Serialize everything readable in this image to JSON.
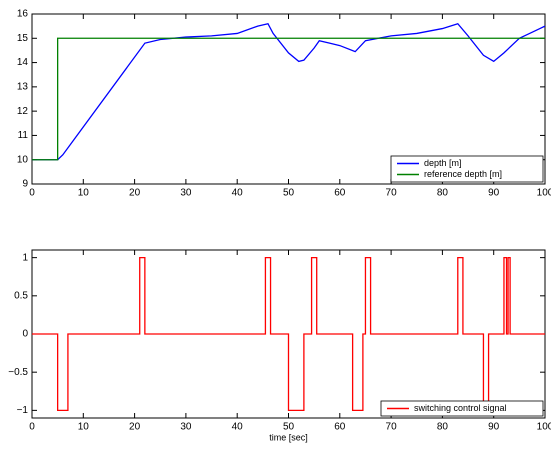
{
  "chart_data": [
    {
      "type": "line",
      "legend": "lower right",
      "xlim": [
        0,
        100
      ],
      "xticks": [
        0,
        10,
        20,
        30,
        40,
        50,
        60,
        70,
        80,
        90,
        100
      ],
      "ylim": [
        9,
        16
      ],
      "yticks": [
        9,
        10,
        11,
        12,
        13,
        14,
        15,
        16
      ],
      "series": [
        {
          "name": "depth [m]",
          "color": "#0000ff",
          "x": [
            0,
            5,
            6,
            22,
            25,
            30,
            35,
            40,
            44,
            46,
            47,
            50,
            52,
            53,
            55,
            56,
            58,
            60,
            63,
            65,
            70,
            75,
            80,
            83,
            85,
            88,
            90,
            92,
            95,
            97,
            99,
            100
          ],
          "values": [
            10,
            10,
            10.2,
            14.8,
            14.95,
            15.05,
            15.1,
            15.2,
            15.5,
            15.6,
            15.2,
            14.4,
            14.05,
            14.1,
            14.6,
            14.9,
            14.8,
            14.7,
            14.45,
            14.9,
            15.1,
            15.2,
            15.4,
            15.6,
            15.1,
            14.3,
            14.05,
            14.4,
            15.0,
            15.2,
            15.4,
            15.5
          ]
        },
        {
          "name": "reference depth [m]",
          "color": "#008000",
          "x": [
            0,
            5,
            5,
            100
          ],
          "values": [
            10,
            10,
            15,
            15
          ]
        }
      ]
    },
    {
      "type": "line",
      "legend": "lower right",
      "xlabel": "time [sec]",
      "xlim": [
        0,
        100
      ],
      "xticks": [
        0,
        10,
        20,
        30,
        40,
        50,
        60,
        70,
        80,
        90,
        100
      ],
      "ylim": [
        -1.1,
        1.1
      ],
      "yticks": [
        {
          "value": -1,
          "label": "−1"
        },
        {
          "value": -0.5,
          "label": "−0.5"
        },
        0,
        0.5,
        1
      ],
      "series": [
        {
          "name": "switching control signal",
          "color": "#ff0000",
          "x": [
            0,
            5,
            5,
            7,
            7,
            21,
            21,
            22,
            22,
            45.5,
            45.5,
            46.5,
            46.5,
            50,
            50,
            53,
            53,
            54.5,
            54.5,
            55.5,
            55.5,
            62.5,
            62.5,
            64.5,
            64.5,
            65,
            65,
            66,
            66,
            83,
            83,
            84,
            84,
            88,
            88,
            89,
            89,
            92,
            92,
            92.5,
            92.5,
            92.8,
            92.8,
            93.2,
            93.2,
            100
          ],
          "values": [
            0,
            0,
            -1,
            -1,
            0,
            0,
            1,
            1,
            0,
            0,
            1,
            1,
            0,
            0,
            -1,
            -1,
            0,
            0,
            1,
            1,
            0,
            0,
            -1,
            -1,
            0,
            0,
            1,
            1,
            0,
            0,
            1,
            1,
            0,
            0,
            -1,
            -1,
            0,
            0,
            1,
            1,
            0,
            0,
            1,
            1,
            0,
            0
          ]
        }
      ]
    }
  ]
}
